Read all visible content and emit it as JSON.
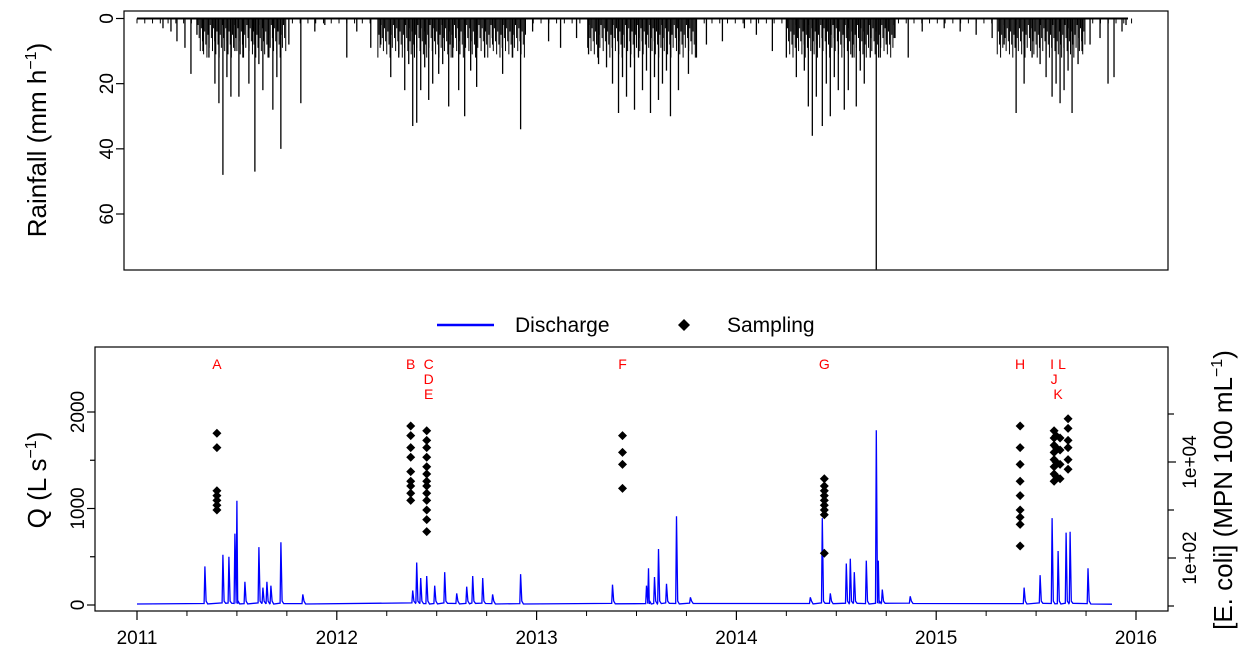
{
  "colors": {
    "discharge": "#0000ff",
    "sampling": "#000000",
    "events": "#ff0000",
    "rain": "#000000"
  },
  "chart_data": [
    {
      "type": "bar",
      "title": "",
      "ylabel": "Rainfall (mm h",
      "ylabel_sup": "−1",
      "ylabel_end": ")",
      "y_reversed": true,
      "ylim": [
        0,
        77
      ],
      "xlim": [
        2011.0,
        2016.0
      ],
      "y_ticks": [
        "0",
        "20",
        "40",
        "60"
      ],
      "y_tick_values": [
        0,
        20,
        40,
        60
      ],
      "spikes": [
        [
          2011.13,
          3
        ],
        [
          2011.17,
          4
        ],
        [
          2011.2,
          7
        ],
        [
          2011.24,
          9
        ],
        [
          2011.27,
          17
        ],
        [
          2011.3,
          5
        ],
        [
          2011.33,
          10
        ],
        [
          2011.36,
          12
        ],
        [
          2011.39,
          20
        ],
        [
          2011.41,
          26
        ],
        [
          2011.43,
          48
        ],
        [
          2011.45,
          18
        ],
        [
          2011.47,
          24
        ],
        [
          2011.49,
          10
        ],
        [
          2011.51,
          24
        ],
        [
          2011.53,
          12
        ],
        [
          2011.56,
          20
        ],
        [
          2011.58,
          8
        ],
        [
          2011.59,
          47
        ],
        [
          2011.61,
          14
        ],
        [
          2011.63,
          22
        ],
        [
          2011.66,
          12
        ],
        [
          2011.68,
          28
        ],
        [
          2011.7,
          18
        ],
        [
          2011.72,
          40
        ],
        [
          2011.76,
          8
        ],
        [
          2011.82,
          26
        ],
        [
          2011.89,
          4
        ],
        [
          2011.94,
          2
        ],
        [
          2012.05,
          12
        ],
        [
          2012.1,
          4
        ],
        [
          2012.17,
          9
        ],
        [
          2012.22,
          8
        ],
        [
          2012.27,
          18
        ],
        [
          2012.31,
          12
        ],
        [
          2012.34,
          22
        ],
        [
          2012.36,
          14
        ],
        [
          2012.38,
          33
        ],
        [
          2012.4,
          32
        ],
        [
          2012.42,
          22
        ],
        [
          2012.44,
          15
        ],
        [
          2012.46,
          25
        ],
        [
          2012.48,
          20
        ],
        [
          2012.51,
          17
        ],
        [
          2012.53,
          14
        ],
        [
          2012.56,
          27
        ],
        [
          2012.58,
          12
        ],
        [
          2012.61,
          22
        ],
        [
          2012.64,
          30
        ],
        [
          2012.67,
          16
        ],
        [
          2012.7,
          21
        ],
        [
          2012.74,
          12
        ],
        [
          2012.78,
          8
        ],
        [
          2012.83,
          17
        ],
        [
          2012.88,
          12
        ],
        [
          2012.92,
          34
        ],
        [
          2012.98,
          4
        ],
        [
          2013.06,
          7
        ],
        [
          2013.12,
          9
        ],
        [
          2013.2,
          6
        ],
        [
          2013.26,
          11
        ],
        [
          2013.31,
          14
        ],
        [
          2013.35,
          15
        ],
        [
          2013.38,
          20
        ],
        [
          2013.41,
          29
        ],
        [
          2013.43,
          18
        ],
        [
          2013.45,
          24
        ],
        [
          2013.47,
          15
        ],
        [
          2013.49,
          28
        ],
        [
          2013.51,
          12
        ],
        [
          2013.53,
          22
        ],
        [
          2013.55,
          16
        ],
        [
          2013.57,
          29
        ],
        [
          2013.59,
          18
        ],
        [
          2013.61,
          25
        ],
        [
          2013.63,
          20
        ],
        [
          2013.65,
          16
        ],
        [
          2013.67,
          30
        ],
        [
          2013.71,
          22
        ],
        [
          2013.76,
          17
        ],
        [
          2013.8,
          12
        ],
        [
          2013.85,
          8
        ],
        [
          2013.93,
          7
        ],
        [
          2014.04,
          3
        ],
        [
          2014.1,
          5
        ],
        [
          2014.18,
          10
        ],
        [
          2014.25,
          12
        ],
        [
          2014.3,
          18
        ],
        [
          2014.34,
          16
        ],
        [
          2014.36,
          27
        ],
        [
          2014.38,
          36
        ],
        [
          2014.4,
          24
        ],
        [
          2014.43,
          33
        ],
        [
          2014.45,
          20
        ],
        [
          2014.47,
          30
        ],
        [
          2014.49,
          18
        ],
        [
          2014.51,
          22
        ],
        [
          2014.54,
          28
        ],
        [
          2014.56,
          22
        ],
        [
          2014.58,
          12
        ],
        [
          2014.6,
          27
        ],
        [
          2014.62,
          16
        ],
        [
          2014.64,
          20
        ],
        [
          2014.67,
          12
        ],
        [
          2014.7,
          77
        ],
        [
          2014.72,
          12
        ],
        [
          2014.75,
          8
        ],
        [
          2014.79,
          6
        ],
        [
          2014.86,
          12
        ],
        [
          2014.93,
          4
        ],
        [
          2015.04,
          3
        ],
        [
          2015.12,
          4
        ],
        [
          2015.2,
          5
        ],
        [
          2015.28,
          6
        ],
        [
          2015.34,
          8
        ],
        [
          2015.4,
          29
        ],
        [
          2015.44,
          20
        ],
        [
          2015.48,
          12
        ],
        [
          2015.52,
          14
        ],
        [
          2015.55,
          18
        ],
        [
          2015.58,
          24
        ],
        [
          2015.6,
          20
        ],
        [
          2015.62,
          26
        ],
        [
          2015.64,
          22
        ],
        [
          2015.66,
          16
        ],
        [
          2015.68,
          29
        ],
        [
          2015.71,
          14
        ],
        [
          2015.73,
          10
        ],
        [
          2015.77,
          8
        ],
        [
          2015.82,
          6
        ],
        [
          2015.86,
          20
        ],
        [
          2015.89,
          18
        ],
        [
          2015.93,
          4
        ],
        [
          2015.95,
          2
        ]
      ]
    },
    {
      "type": "line",
      "title": "",
      "xlabel": "",
      "ylabel": "Q (L s",
      "ylabel_sup": "−1",
      "ylabel_end": ")",
      "ylabel_right": "[E. coli] (MPN 100 mL",
      "ylabel_right_sup": "−1",
      "ylabel_right_end": ")",
      "legend_position": "top",
      "ylim": [
        -50,
        2650
      ],
      "xlim": [
        2010.9,
        2016.1
      ],
      "x_ticks": [
        "2011",
        "2012",
        "2013",
        "2014",
        "2015",
        "2016"
      ],
      "x_tick_values": [
        2011,
        2012,
        2013,
        2014,
        2015,
        2016
      ],
      "y_ticks": [
        "0",
        "1000",
        "2000"
      ],
      "y_tick_values": [
        0,
        1000,
        2000
      ],
      "y2_ticks": [
        "1e+02",
        "1e+04"
      ],
      "y2_tick_values": [
        2,
        4
      ],
      "y2_scale": "log10",
      "y2_lim": [
        0.85,
        5.4
      ],
      "y2_minor": [
        1,
        3,
        5
      ],
      "series": [
        {
          "name": "Discharge",
          "color": "#0000ff",
          "peaks": [
            [
              2011.34,
              400
            ],
            [
              2011.43,
              520
            ],
            [
              2011.46,
              500
            ],
            [
              2011.49,
              740
            ],
            [
              2011.5,
              1080
            ],
            [
              2011.54,
              240
            ],
            [
              2011.61,
              600
            ],
            [
              2011.63,
              180
            ],
            [
              2011.65,
              240
            ],
            [
              2011.67,
              200
            ],
            [
              2011.72,
              650
            ],
            [
              2011.83,
              110
            ],
            [
              2012.38,
              150
            ],
            [
              2012.4,
              440
            ],
            [
              2012.42,
              280
            ],
            [
              2012.45,
              300
            ],
            [
              2012.49,
              200
            ],
            [
              2012.54,
              340
            ],
            [
              2012.6,
              120
            ],
            [
              2012.65,
              190
            ],
            [
              2012.68,
              300
            ],
            [
              2012.73,
              280
            ],
            [
              2012.78,
              110
            ],
            [
              2012.92,
              320
            ],
            [
              2013.38,
              210
            ],
            [
              2013.55,
              200
            ],
            [
              2013.56,
              380
            ],
            [
              2013.59,
              290
            ],
            [
              2013.61,
              580
            ],
            [
              2013.65,
              220
            ],
            [
              2013.7,
              920
            ],
            [
              2013.77,
              80
            ],
            [
              2014.37,
              80
            ],
            [
              2014.43,
              900
            ],
            [
              2014.47,
              120
            ],
            [
              2014.55,
              430
            ],
            [
              2014.57,
              480
            ],
            [
              2014.59,
              340
            ],
            [
              2014.65,
              460
            ],
            [
              2014.7,
              1810
            ],
            [
              2014.71,
              460
            ],
            [
              2014.73,
              160
            ],
            [
              2014.87,
              90
            ],
            [
              2015.44,
              180
            ],
            [
              2015.52,
              310
            ],
            [
              2015.58,
              900
            ],
            [
              2015.61,
              560
            ],
            [
              2015.65,
              750
            ],
            [
              2015.67,
              760
            ],
            [
              2015.76,
              380
            ]
          ]
        },
        {
          "name": "Sampling",
          "color": "#000000",
          "points": [
            [
              2011.4,
              3.0
            ],
            [
              2011.4,
              3.1
            ],
            [
              2011.4,
              3.2
            ],
            [
              2011.4,
              3.3
            ],
            [
              2011.4,
              3.4
            ],
            [
              2011.4,
              4.3
            ],
            [
              2011.4,
              4.6
            ],
            [
              2012.37,
              3.2
            ],
            [
              2012.37,
              3.35
            ],
            [
              2012.37,
              3.5
            ],
            [
              2012.37,
              3.6
            ],
            [
              2012.37,
              3.8
            ],
            [
              2012.37,
              4.1
            ],
            [
              2012.37,
              4.3
            ],
            [
              2012.37,
              4.55
            ],
            [
              2012.37,
              4.75
            ],
            [
              2012.45,
              2.55
            ],
            [
              2012.45,
              2.8
            ],
            [
              2012.45,
              3.0
            ],
            [
              2012.45,
              3.2
            ],
            [
              2012.45,
              3.35
            ],
            [
              2012.45,
              3.5
            ],
            [
              2012.45,
              3.6
            ],
            [
              2012.45,
              3.75
            ],
            [
              2012.45,
              3.9
            ],
            [
              2012.45,
              4.1
            ],
            [
              2012.45,
              4.3
            ],
            [
              2012.45,
              4.45
            ],
            [
              2012.45,
              4.65
            ],
            [
              2013.43,
              3.45
            ],
            [
              2013.43,
              3.95
            ],
            [
              2013.43,
              4.2
            ],
            [
              2013.43,
              4.55
            ],
            [
              2014.44,
              2.1
            ],
            [
              2014.44,
              2.9
            ],
            [
              2014.44,
              3.0
            ],
            [
              2014.44,
              3.1
            ],
            [
              2014.44,
              3.2
            ],
            [
              2014.44,
              3.3
            ],
            [
              2014.44,
              3.4
            ],
            [
              2014.44,
              3.5
            ],
            [
              2014.44,
              3.65
            ],
            [
              2015.42,
              2.25
            ],
            [
              2015.42,
              2.7
            ],
            [
              2015.42,
              2.85
            ],
            [
              2015.42,
              3.0
            ],
            [
              2015.42,
              3.3
            ],
            [
              2015.42,
              3.6
            ],
            [
              2015.42,
              3.95
            ],
            [
              2015.42,
              4.3
            ],
            [
              2015.42,
              4.75
            ],
            [
              2015.59,
              3.6
            ],
            [
              2015.59,
              3.75
            ],
            [
              2015.59,
              3.9
            ],
            [
              2015.59,
              4.05
            ],
            [
              2015.59,
              4.2
            ],
            [
              2015.59,
              4.35
            ],
            [
              2015.59,
              4.5
            ],
            [
              2015.59,
              4.65
            ],
            [
              2015.6,
              3.7
            ],
            [
              2015.6,
              4.0
            ],
            [
              2015.6,
              4.3
            ],
            [
              2015.6,
              4.55
            ],
            [
              2015.62,
              3.65
            ],
            [
              2015.62,
              3.95
            ],
            [
              2015.62,
              4.25
            ],
            [
              2015.62,
              4.5
            ],
            [
              2015.66,
              3.85
            ],
            [
              2015.66,
              4.05
            ],
            [
              2015.66,
              4.3
            ],
            [
              2015.66,
              4.45
            ],
            [
              2015.66,
              4.7
            ],
            [
              2015.66,
              4.9
            ]
          ]
        }
      ],
      "events": [
        {
          "label": "A",
          "x": 2011.4,
          "row": 0
        },
        {
          "label": "B",
          "x": 2012.37,
          "row": 0
        },
        {
          "label": "C",
          "x": 2012.46,
          "row": 0
        },
        {
          "label": "D",
          "x": 2012.46,
          "row": 1
        },
        {
          "label": "E",
          "x": 2012.46,
          "row": 2
        },
        {
          "label": "F",
          "x": 2013.43,
          "row": 0
        },
        {
          "label": "G",
          "x": 2014.44,
          "row": 0
        },
        {
          "label": "H",
          "x": 2015.42,
          "row": 0
        },
        {
          "label": "I",
          "x": 2015.58,
          "row": 0
        },
        {
          "label": "L",
          "x": 2015.63,
          "row": 0
        },
        {
          "label": "J",
          "x": 2015.59,
          "row": 1
        },
        {
          "label": "K",
          "x": 2015.61,
          "row": 2
        }
      ]
    }
  ]
}
